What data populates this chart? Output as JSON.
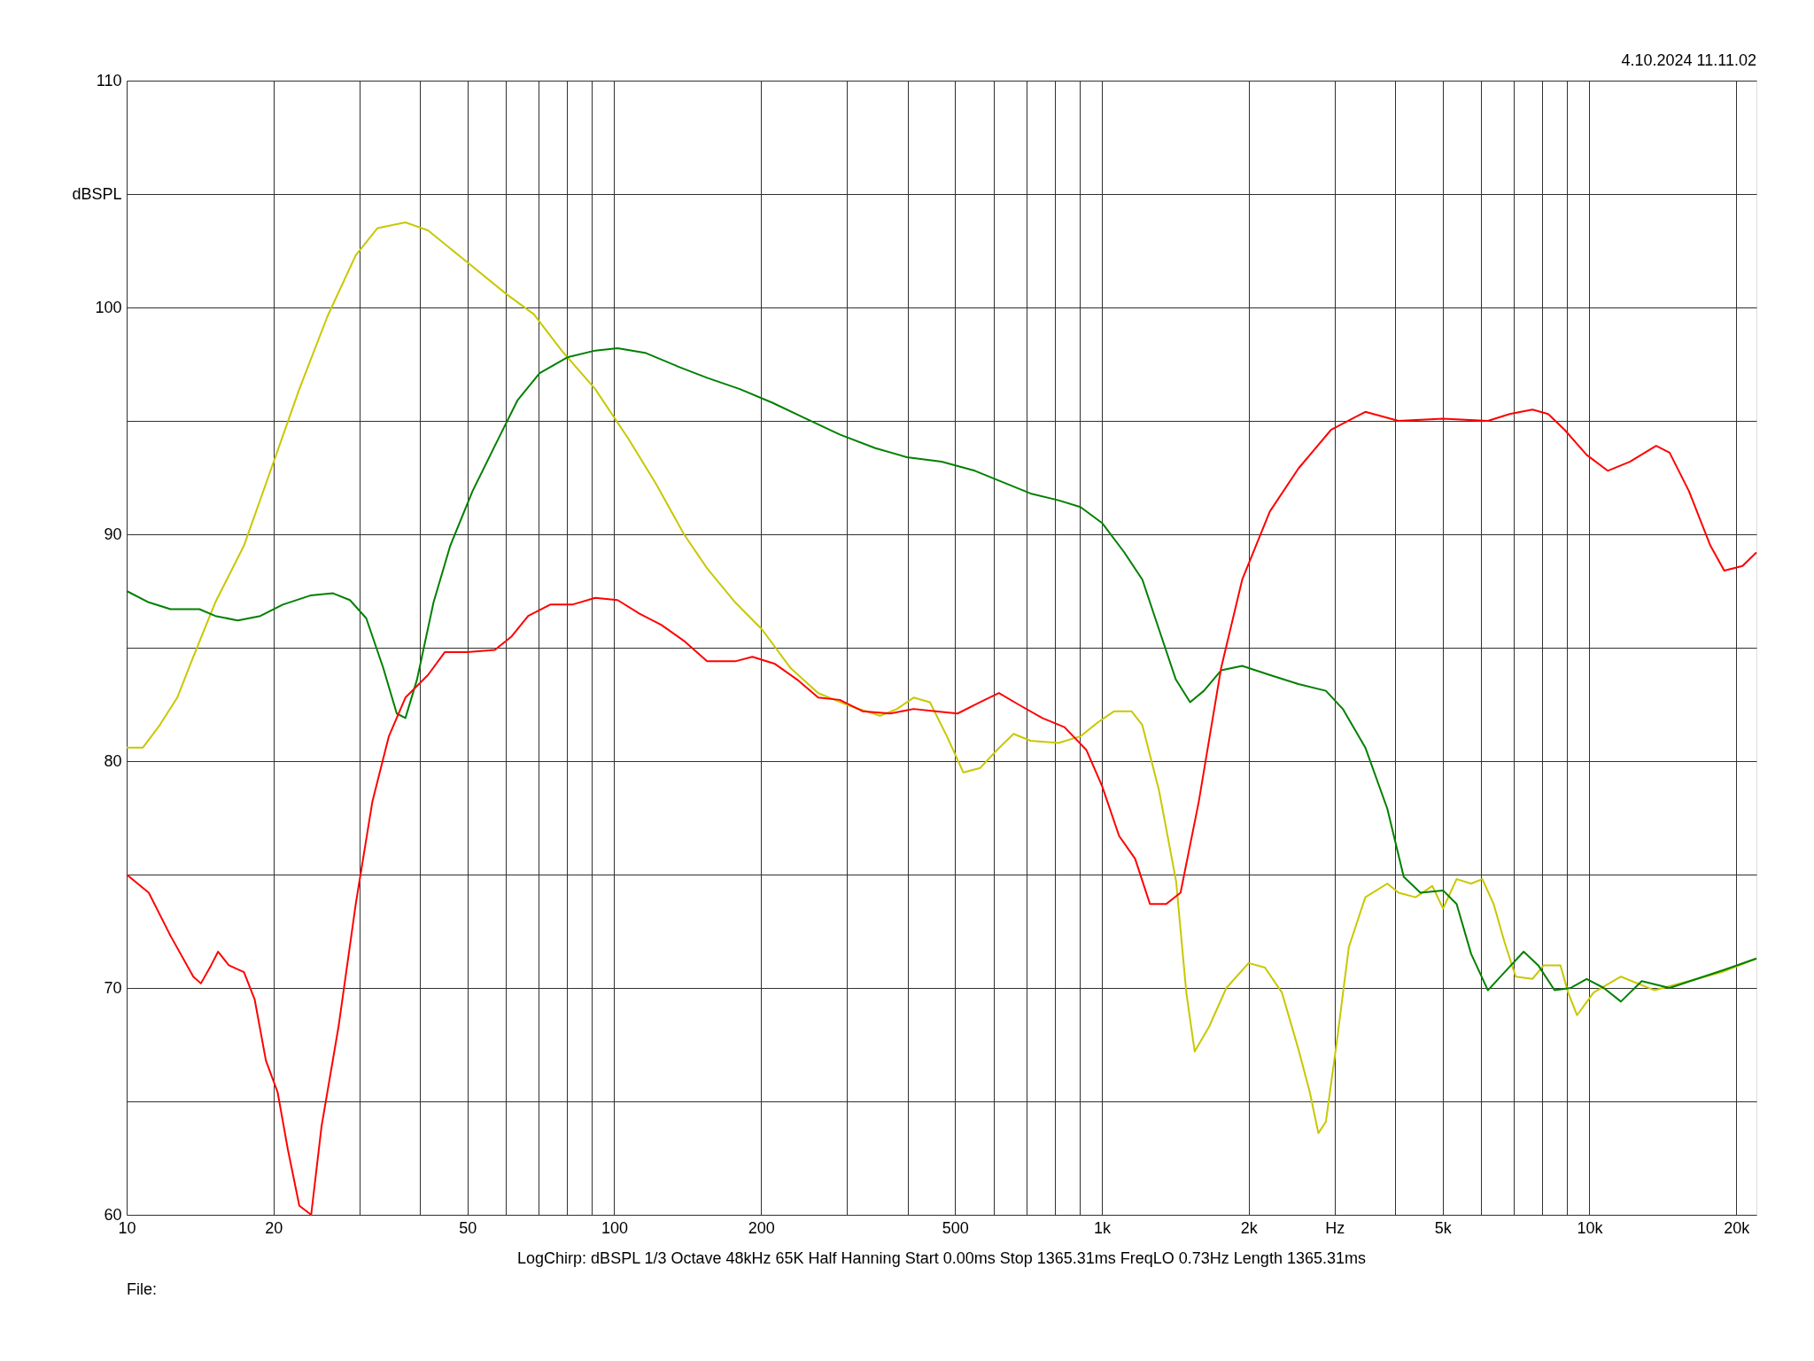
{
  "chart_data": {
    "type": "line",
    "annotations": [
      "4.10.2024 11.11.02",
      "LogChirp:  dBSPL   1/3 Octave   48kHz   65K   Half Hanning   Start 0.00ms   Stop 1365.31ms   FreqLO 0.73Hz   Length 1365.31ms",
      "File:"
    ],
    "log": "x",
    "grid": true,
    "marker": "none",
    "line_style": "solid",
    "xlim": [
      10,
      22000
    ],
    "ylim": [
      60,
      110
    ],
    "xticks": [
      10,
      20,
      {
        "value": 30,
        "label": null
      },
      {
        "value": 40,
        "label": null
      },
      50,
      {
        "value": 60,
        "label": null
      },
      {
        "value": 70,
        "label": null
      },
      {
        "value": 80,
        "label": null
      },
      {
        "value": 90,
        "label": null
      },
      100,
      200,
      {
        "value": 300,
        "label": null
      },
      {
        "value": 400,
        "label": null
      },
      500,
      {
        "value": 600,
        "label": null
      },
      {
        "value": 700,
        "label": null
      },
      {
        "value": 800,
        "label": null
      },
      {
        "value": 900,
        "label": null
      },
      {
        "value": 1000,
        "label": "1k"
      },
      {
        "value": 2000,
        "label": "2k"
      },
      {
        "value": 3000,
        "label": "Hz"
      },
      {
        "value": 4000,
        "label": null
      },
      {
        "value": 5000,
        "label": "5k"
      },
      {
        "value": 6000,
        "label": null
      },
      {
        "value": 7000,
        "label": null
      },
      {
        "value": 8000,
        "label": null
      },
      {
        "value": 9000,
        "label": null
      },
      {
        "value": 10000,
        "label": "10k"
      },
      {
        "value": 20000,
        "label": "20k"
      }
    ],
    "yticks": [
      60,
      {
        "value": 65,
        "label": null
      },
      70,
      {
        "value": 75,
        "label": null
      },
      80,
      {
        "value": 85,
        "label": null
      },
      90,
      {
        "value": 95,
        "label": null
      },
      100,
      {
        "value": 105,
        "label": "dBSPL"
      },
      110
    ],
    "series": [
      {
        "color": "#c8c800",
        "x": [
          10,
          10.8,
          11.7,
          12.7,
          13.7,
          15.2,
          17.4,
          19.8,
          22.6,
          25.8,
          29.5,
          32.7,
          37.3,
          41.5,
          49.9,
          60,
          68.4,
          78,
          91.4,
          107,
          122,
          139,
          155,
          177,
          201,
          230,
          262,
          307,
          351,
          380,
          411,
          444,
          481,
          520,
          563,
          610,
          659,
          714,
          815,
          905,
          980,
          1060,
          1150,
          1210,
          1310,
          1420,
          1490,
          1550,
          1660,
          1800,
          2000,
          2160,
          2340,
          2530,
          2670,
          2780,
          2880,
          3040,
          3210,
          3470,
          3850,
          4060,
          4400,
          4760,
          5010,
          5340,
          5720,
          6030,
          6360,
          6700,
          7060,
          7640,
          8060,
          8720,
          9040,
          9430,
          10200,
          11600,
          13600,
          16000,
          18700,
          22000
        ],
        "values": [
          80.6,
          80.6,
          81.6,
          82.8,
          84.6,
          87.0,
          89.5,
          92.9,
          96.4,
          99.6,
          102.3,
          103.5,
          103.75,
          103.4,
          102.0,
          100.6,
          99.7,
          98.1,
          96.4,
          94.2,
          92.2,
          90.0,
          88.5,
          87.0,
          85.8,
          84.1,
          83.0,
          82.4,
          82.0,
          82.3,
          82.8,
          82.6,
          81.1,
          79.5,
          79.7,
          80.5,
          81.2,
          80.9,
          80.8,
          81.1,
          81.7,
          82.2,
          82.2,
          81.6,
          78.7,
          74.7,
          69.8,
          67.2,
          68.3,
          70.0,
          71.1,
          70.9,
          69.8,
          67.3,
          65.4,
          63.6,
          64.1,
          67.8,
          71.8,
          74.0,
          74.6,
          74.2,
          74.0,
          74.5,
          73.5,
          74.8,
          74.6,
          74.8,
          73.7,
          72.0,
          70.5,
          70.4,
          71.0,
          71.0,
          69.8,
          68.8,
          69.8,
          70.5,
          69.9,
          70.3,
          70.7,
          71.3
        ]
      },
      {
        "color": "#008000",
        "x": [
          10,
          11.1,
          12.3,
          14.1,
          15.2,
          16.9,
          18.8,
          20.9,
          23.8,
          26.5,
          28.7,
          31,
          33.6,
          35.8,
          37.3,
          39.4,
          42.6,
          46.1,
          51.2,
          56.9,
          63.3,
          70.3,
          80.1,
          91.4,
          101.6,
          115.7,
          135,
          155,
          181,
          211,
          247,
          290,
          343,
          398,
          469,
          549,
          626,
          714,
          815,
          904,
          1001,
          1112,
          1211,
          1310,
          1418,
          1517,
          1619,
          1756,
          1940,
          2210,
          2530,
          2880,
          3120,
          3470,
          3850,
          4160,
          4500,
          5010,
          5340,
          5720,
          6190,
          6700,
          7330,
          7850,
          8480,
          9150,
          9870,
          10700,
          11600,
          12800,
          14600,
          16600,
          18900,
          22000
        ],
        "values": [
          87.5,
          87.0,
          86.7,
          86.7,
          86.4,
          86.2,
          86.4,
          86.9,
          87.3,
          87.4,
          87.1,
          86.3,
          84.1,
          82.1,
          81.9,
          83.6,
          87.0,
          89.5,
          91.9,
          93.9,
          95.9,
          97.1,
          97.8,
          98.1,
          98.2,
          98.0,
          97.4,
          96.9,
          96.4,
          95.8,
          95.1,
          94.4,
          93.8,
          93.4,
          93.2,
          92.8,
          92.3,
          91.8,
          91.5,
          91.2,
          90.5,
          89.2,
          88.0,
          85.8,
          83.6,
          82.6,
          83.1,
          84.0,
          84.2,
          83.8,
          83.4,
          83.1,
          82.3,
          80.6,
          77.9,
          74.9,
          74.2,
          74.3,
          73.7,
          71.5,
          69.9,
          70.7,
          71.6,
          71.0,
          69.9,
          70.0,
          70.4,
          70.0,
          69.4,
          70.3,
          70.0,
          70.4,
          70.8,
          71.3
        ]
      },
      {
        "color": "#ff0000",
        "x": [
          10,
          11.1,
          12.3,
          13.7,
          14.2,
          14.9,
          15.4,
          16.2,
          17.4,
          18.3,
          19.3,
          20.4,
          21.4,
          22.6,
          23.9,
          25.1,
          27.2,
          29.5,
          31.9,
          34.5,
          37.3,
          41.5,
          44.9,
          49.9,
          56.9,
          61.6,
          66.6,
          73.9,
          82,
          91.4,
          101.6,
          112.7,
          125,
          139,
          155,
          177,
          192,
          213,
          237,
          262,
          290,
          323,
          368,
          411,
          456,
          506,
          563,
          615,
          674,
          755,
          838,
          929,
          1001,
          1085,
          1170,
          1255,
          1355,
          1450,
          1580,
          1756,
          1940,
          2210,
          2530,
          2950,
          3470,
          4060,
          5010,
          6190,
          6860,
          7640,
          8230,
          8900,
          9870,
          10900,
          12100,
          13700,
          14600,
          16000,
          17700,
          18900,
          20600,
          22000
        ],
        "values": [
          75.0,
          74.2,
          72.3,
          70.5,
          70.2,
          71.0,
          71.6,
          71.0,
          70.7,
          69.5,
          66.8,
          65.4,
          62.9,
          60.4,
          60.0,
          63.9,
          68.3,
          73.7,
          78.2,
          81.1,
          82.8,
          83.8,
          84.8,
          84.8,
          84.9,
          85.5,
          86.4,
          86.9,
          86.9,
          87.2,
          87.1,
          86.5,
          86.0,
          85.3,
          84.4,
          84.4,
          84.6,
          84.3,
          83.6,
          82.8,
          82.7,
          82.2,
          82.1,
          82.3,
          82.2,
          82.1,
          82.6,
          83.0,
          82.5,
          81.9,
          81.5,
          80.5,
          78.9,
          76.7,
          75.7,
          73.7,
          73.7,
          74.2,
          78.2,
          84.1,
          88.0,
          91.0,
          92.9,
          94.6,
          95.4,
          95.0,
          95.1,
          95.0,
          95.3,
          95.5,
          95.3,
          94.6,
          93.5,
          92.8,
          93.2,
          93.9,
          93.6,
          91.9,
          89.5,
          88.4,
          88.6,
          89.2
        ]
      }
    ]
  }
}
